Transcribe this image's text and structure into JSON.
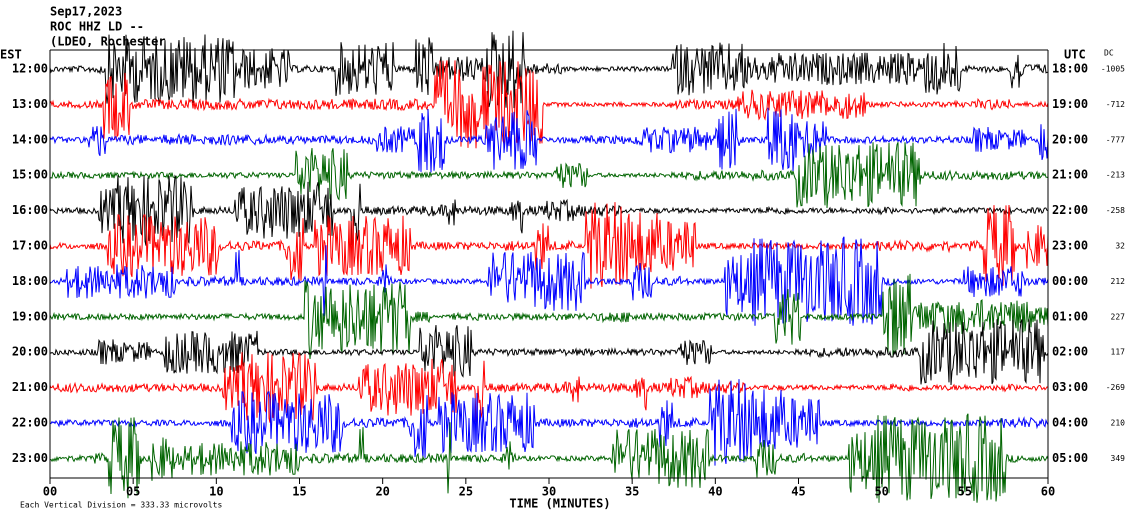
{
  "chart_data": {
    "type": "helicorder",
    "title_lines": [
      "Sep17,2023",
      "ROC HHZ LD --",
      "(LDEO, Rochester"
    ],
    "left_axis_label": "EST",
    "right_axis_label": "UTC",
    "dc_label": "DC",
    "xlabel": "TIME (MINUTES)",
    "footnote": "Each Vertical Division = 333.33 microvolts",
    "rows": {
      "est": [
        "12:00",
        "13:00",
        "14:00",
        "15:00",
        "16:00",
        "17:00",
        "18:00",
        "19:00",
        "20:00",
        "21:00",
        "22:00",
        "23:00"
      ],
      "utc": [
        "18:00",
        "19:00",
        "20:00",
        "21:00",
        "22:00",
        "23:00",
        "00:00",
        "01:00",
        "02:00",
        "03:00",
        "04:00",
        "05:00"
      ],
      "dc": [
        -1005,
        -712,
        -777,
        -213,
        -258,
        32,
        212,
        227,
        117,
        -269,
        210,
        349
      ]
    },
    "colors": [
      "#000000",
      "#ff0000",
      "#0000ff",
      "#006400"
    ],
    "xlim": [
      0,
      60
    ],
    "xticks": [
      {
        "value": 0,
        "label": "00"
      },
      {
        "value": 5,
        "label": "05"
      },
      10,
      15,
      20,
      25,
      30,
      35,
      40,
      45,
      50,
      55,
      60
    ]
  }
}
